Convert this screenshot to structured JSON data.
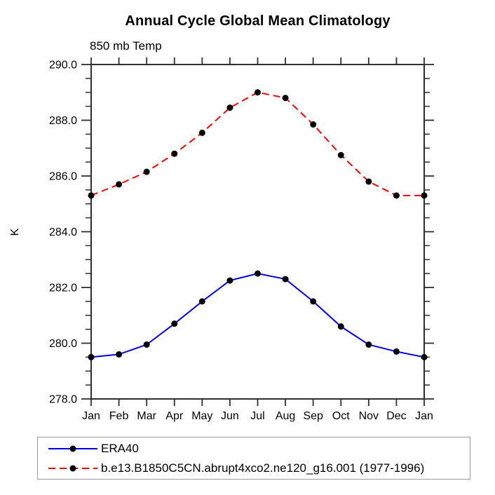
{
  "chart_data": {
    "type": "line",
    "title": "Annual Cycle Global Mean Climatology",
    "subtitle": "850 mb Temp",
    "ylabel": "K",
    "xlabel": "",
    "grid": false,
    "legend_position": "bottom-left-box",
    "x_categories": [
      "Jan",
      "Feb",
      "Mar",
      "Apr",
      "May",
      "Jun",
      "Jul",
      "Aug",
      "Sep",
      "Oct",
      "Nov",
      "Dec",
      "Jan"
    ],
    "ylim": [
      278.0,
      290.0
    ],
    "y_major_ticks": [
      278,
      280,
      282,
      284,
      286,
      288,
      290
    ],
    "y_tick_labels": [
      "278.0",
      "280.0",
      "282.0",
      "284.0",
      "286.0",
      "288.0",
      "290.0"
    ],
    "y_minor_step": 0.5,
    "axis_color": "#2e2e2e",
    "marker_color": "#000000",
    "legend_border_color": "#999999",
    "series": [
      {
        "name": "ERA40",
        "color": "#0000ee",
        "style": "solid",
        "marker": "filled-circle",
        "values": [
          279.5,
          279.6,
          279.95,
          280.7,
          281.5,
          282.25,
          282.5,
          282.3,
          281.5,
          280.6,
          279.95,
          279.7,
          279.5
        ]
      },
      {
        "name": "b.e13.B1850C5CN.abrupt4xco2.ne120_g16.001 (1977-1996)",
        "color": "#ff0000",
        "style": "dashed",
        "marker": "filled-circle",
        "values": [
          285.3,
          285.7,
          286.15,
          286.8,
          287.55,
          288.45,
          289.0,
          288.8,
          287.85,
          286.75,
          285.8,
          285.3,
          285.3
        ]
      }
    ]
  }
}
